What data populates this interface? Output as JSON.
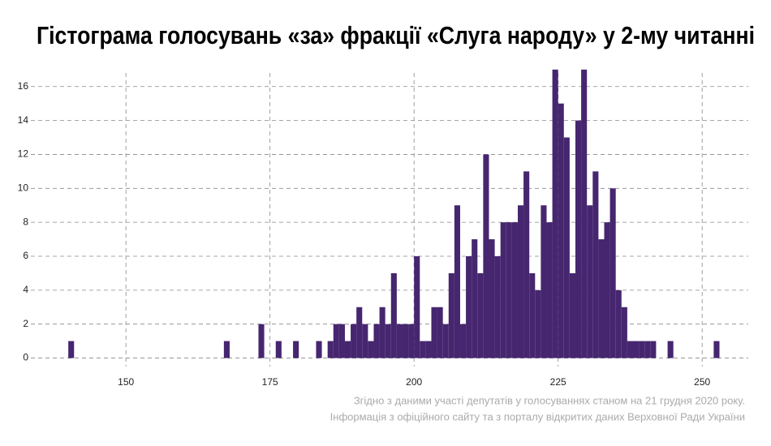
{
  "chart_data": {
    "type": "histogram",
    "title": "Гістограма голосувань «за» фракції «Слуга народу» у 2-му читанні",
    "annotations": [
      "Згідно з даними участі депутатів у голосуваннях станом на 21 грудня 2020 року.",
      "Інформація з офіційного сайту та з порталу відкритих даних Верховної Ради України"
    ],
    "bins": [
      140,
      141,
      142,
      143,
      144,
      145,
      146,
      147,
      148,
      149,
      150,
      151,
      152,
      153,
      154,
      155,
      156,
      157,
      158,
      159,
      160,
      161,
      162,
      163,
      164,
      165,
      166,
      167,
      168,
      169,
      170,
      171,
      172,
      173,
      174,
      175,
      176,
      177,
      178,
      179,
      180,
      181,
      182,
      183,
      184,
      185,
      186,
      187,
      188,
      189,
      190,
      191,
      192,
      193,
      194,
      195,
      196,
      197,
      198,
      199,
      200,
      201,
      202,
      203,
      204,
      205,
      206,
      207,
      208,
      209,
      210,
      211,
      212,
      213,
      214,
      215,
      216,
      217,
      218,
      219,
      220,
      221,
      222,
      223,
      224,
      225,
      226,
      227,
      228,
      229,
      230,
      231,
      232,
      233,
      234,
      235,
      236,
      237,
      238,
      239,
      240,
      241,
      242,
      243,
      244,
      245,
      246,
      247,
      248,
      249,
      250,
      251,
      252,
      253
    ],
    "values": [
      1,
      0,
      0,
      0,
      0,
      0,
      0,
      0,
      0,
      0,
      0,
      0,
      0,
      0,
      0,
      0,
      0,
      0,
      0,
      0,
      0,
      0,
      0,
      0,
      0,
      0,
      0,
      1,
      0,
      0,
      0,
      0,
      0,
      2,
      0,
      0,
      1,
      0,
      0,
      1,
      0,
      0,
      0,
      1,
      0,
      1,
      2,
      2,
      1,
      2,
      3,
      2,
      1,
      2,
      3,
      2,
      5,
      2,
      2,
      2,
      6,
      1,
      1,
      3,
      3,
      2,
      5,
      9,
      2,
      6,
      7,
      5,
      12,
      7,
      6,
      8,
      8,
      8,
      9,
      11,
      5,
      4,
      9,
      8,
      17,
      15,
      13,
      5,
      14,
      17,
      9,
      11,
      7,
      8,
      10,
      4,
      3,
      1,
      1,
      1,
      1,
      1,
      0,
      0,
      1,
      0,
      0,
      0,
      0,
      0,
      0,
      0,
      1
    ],
    "color": "#46266f",
    "xlim": [
      133.5,
      258
    ],
    "xticks": [
      150,
      175,
      200,
      225,
      250
    ],
    "ylim": [
      -0.5,
      16.8
    ],
    "yticks": [
      0,
      2,
      4,
      6,
      8,
      10,
      12,
      14,
      16
    ],
    "grid": true
  }
}
